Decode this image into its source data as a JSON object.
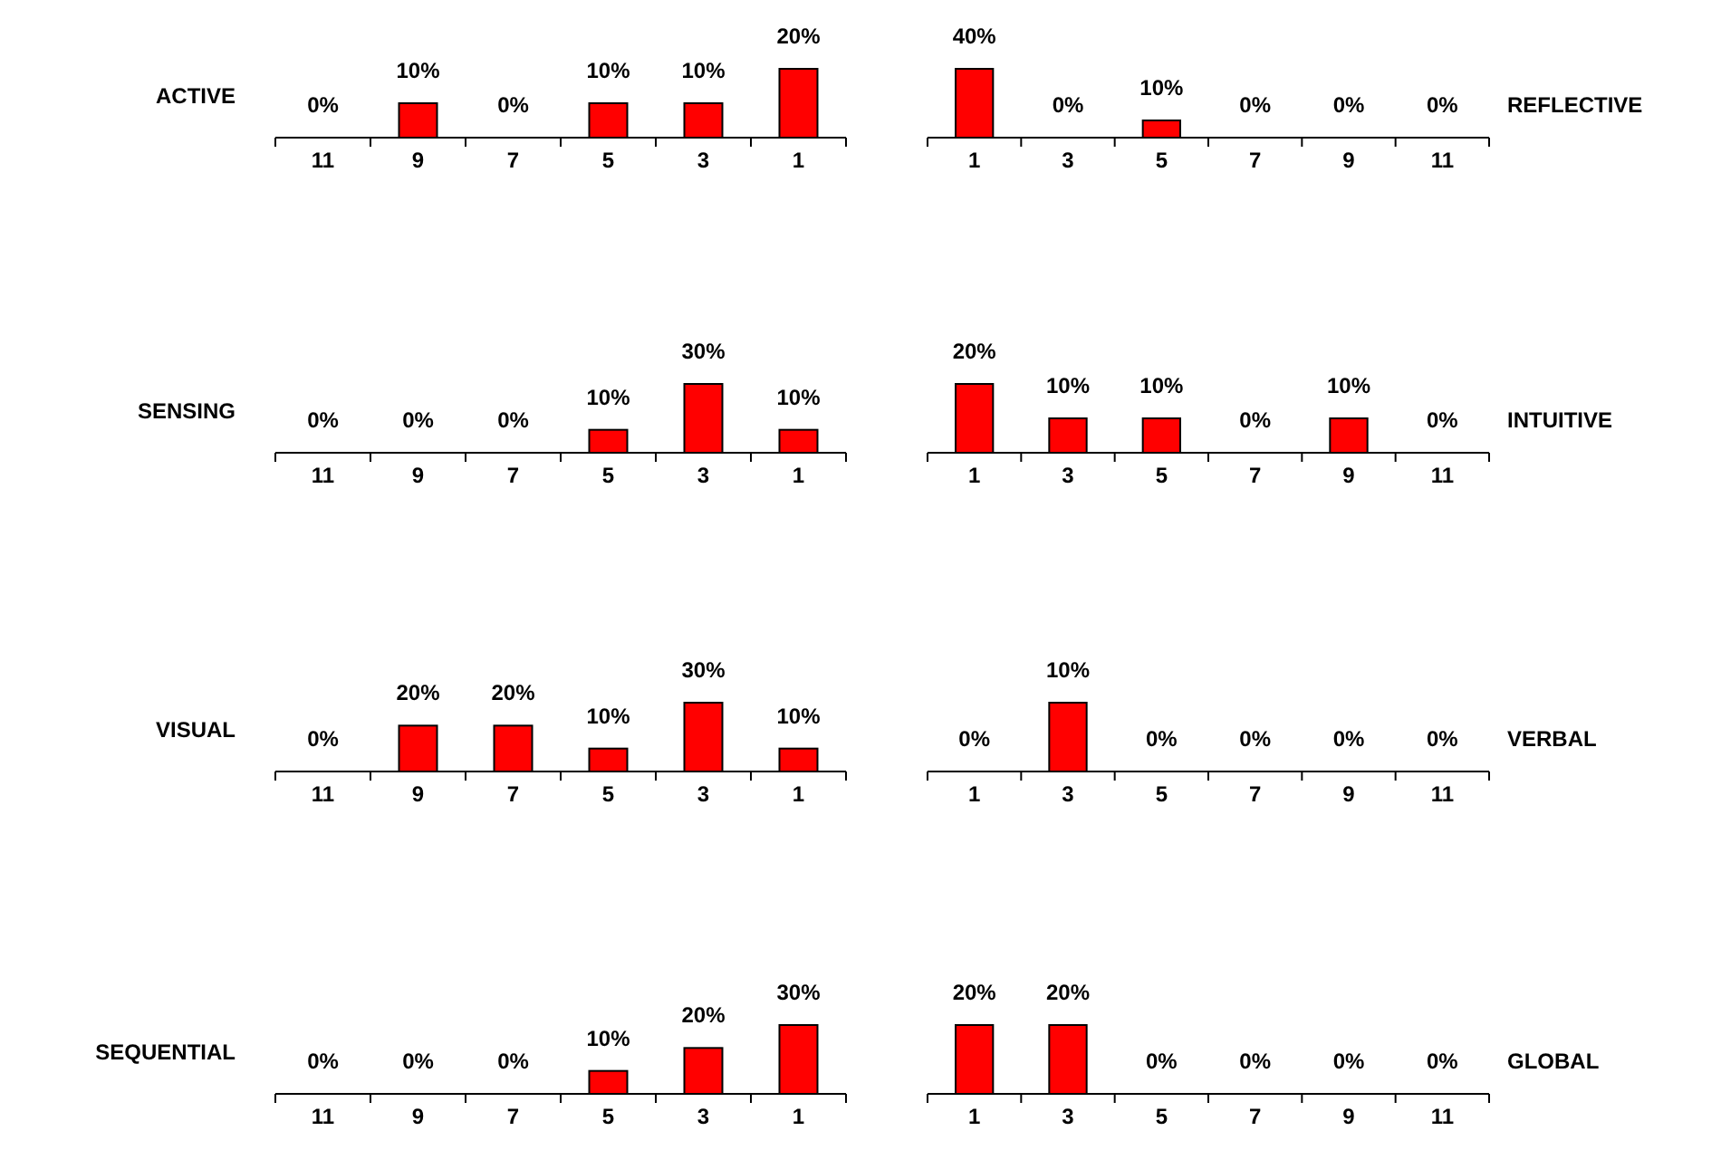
{
  "chart_data": [
    {
      "type": "bar",
      "ylabel": "ACTIVE",
      "categories": [
        "11",
        "9",
        "7",
        "5",
        "3",
        "1"
      ],
      "values": [
        0,
        10,
        0,
        10,
        10,
        20
      ],
      "value_labels": [
        "0%",
        "10%",
        "0%",
        "10%",
        "10%",
        "20%"
      ],
      "color": "#ff0000"
    },
    {
      "type": "bar",
      "ylabel": "REFLECTIVE",
      "categories": [
        "1",
        "3",
        "5",
        "7",
        "9",
        "11"
      ],
      "values": [
        40,
        0,
        10,
        0,
        0,
        0
      ],
      "value_labels": [
        "40%",
        "0%",
        "10%",
        "0%",
        "0%",
        "0%"
      ],
      "color": "#ff0000"
    },
    {
      "type": "bar",
      "ylabel": "SENSING",
      "categories": [
        "11",
        "9",
        "7",
        "5",
        "3",
        "1"
      ],
      "values": [
        0,
        0,
        0,
        10,
        30,
        10
      ],
      "value_labels": [
        "0%",
        "0%",
        "0%",
        "10%",
        "30%",
        "10%"
      ],
      "color": "#ff0000"
    },
    {
      "type": "bar",
      "ylabel": "INTUITIVE",
      "categories": [
        "1",
        "3",
        "5",
        "7",
        "9",
        "11"
      ],
      "values": [
        20,
        10,
        10,
        0,
        10,
        0
      ],
      "value_labels": [
        "20%",
        "10%",
        "10%",
        "0%",
        "10%",
        "0%"
      ],
      "color": "#ff0000"
    },
    {
      "type": "bar",
      "ylabel": "VISUAL",
      "categories": [
        "11",
        "9",
        "7",
        "5",
        "3",
        "1"
      ],
      "values": [
        0,
        20,
        20,
        10,
        30,
        10
      ],
      "value_labels": [
        "0%",
        "20%",
        "20%",
        "10%",
        "30%",
        "10%"
      ],
      "color": "#ff0000"
    },
    {
      "type": "bar",
      "ylabel": "VERBAL",
      "categories": [
        "1",
        "3",
        "5",
        "7",
        "9",
        "11"
      ],
      "values": [
        0,
        10,
        0,
        0,
        0,
        0
      ],
      "value_labels": [
        "0%",
        "10%",
        "0%",
        "0%",
        "0%",
        "0%"
      ],
      "color": "#ff0000"
    },
    {
      "type": "bar",
      "ylabel": "SEQUENTIAL",
      "categories": [
        "11",
        "9",
        "7",
        "5",
        "3",
        "1"
      ],
      "values": [
        0,
        0,
        0,
        10,
        20,
        30
      ],
      "value_labels": [
        "0%",
        "0%",
        "0%",
        "10%",
        "20%",
        "30%"
      ],
      "color": "#ff0000"
    },
    {
      "type": "bar",
      "ylabel": "GLOBAL",
      "categories": [
        "1",
        "3",
        "5",
        "7",
        "9",
        "11"
      ],
      "values": [
        20,
        20,
        0,
        0,
        0,
        0
      ],
      "value_labels": [
        "20%",
        "20%",
        "0%",
        "0%",
        "0%",
        "0%"
      ],
      "color": "#ff0000"
    }
  ]
}
